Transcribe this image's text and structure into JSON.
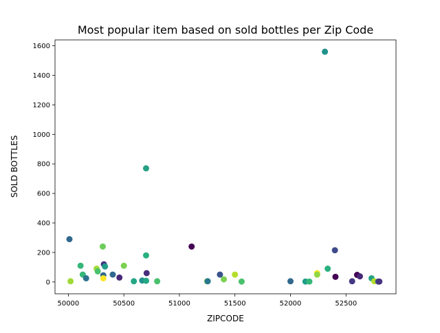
{
  "chart_data": {
    "type": "scatter",
    "title": "Most popular item based on sold bottles per Zip Code",
    "xlabel": "ZIPCODE",
    "ylabel": "SOLD BOTTLES",
    "xlim": [
      49880,
      52950
    ],
    "ylim": [
      -80,
      1640
    ],
    "xticks": [
      {
        "value": 50000,
        "label": "50000"
      },
      {
        "value": 50500,
        "label": "50500"
      },
      {
        "value": 51000,
        "label": "51000"
      },
      {
        "value": 51500,
        "label": "51500"
      },
      {
        "value": 52000,
        "label": "52000"
      },
      {
        "value": 52500,
        "label": "52500"
      }
    ],
    "yticks": [
      {
        "value": 0,
        "label": "0"
      },
      {
        "value": 200,
        "label": "200"
      },
      {
        "value": 400,
        "label": "400"
      },
      {
        "value": 600,
        "label": "600"
      },
      {
        "value": 800,
        "label": "800"
      },
      {
        "value": 1000,
        "label": "1000"
      },
      {
        "value": 1200,
        "label": "1200"
      },
      {
        "value": 1400,
        "label": "1400"
      },
      {
        "value": 1600,
        "label": "1600"
      }
    ],
    "grid": false,
    "points": [
      {
        "x": 50010,
        "y": 290,
        "color": "#31688e"
      },
      {
        "x": 50020,
        "y": 5,
        "color": "#a0da39"
      },
      {
        "x": 50110,
        "y": 110,
        "color": "#35b779"
      },
      {
        "x": 50130,
        "y": 50,
        "color": "#35b779"
      },
      {
        "x": 50160,
        "y": 25,
        "color": "#2c728e"
      },
      {
        "x": 50255,
        "y": 90,
        "color": "#a0da39"
      },
      {
        "x": 50265,
        "y": 72,
        "color": "#4ac16d"
      },
      {
        "x": 50310,
        "y": 240,
        "color": "#6ccd5a"
      },
      {
        "x": 50315,
        "y": 45,
        "color": "#31688e"
      },
      {
        "x": 50315,
        "y": 25,
        "color": "#fde725"
      },
      {
        "x": 50320,
        "y": 120,
        "color": "#443983"
      },
      {
        "x": 50330,
        "y": 105,
        "color": "#1f9e89"
      },
      {
        "x": 50400,
        "y": 50,
        "color": "#31688e"
      },
      {
        "x": 50460,
        "y": 30,
        "color": "#482878"
      },
      {
        "x": 50500,
        "y": 110,
        "color": "#7ad151"
      },
      {
        "x": 50590,
        "y": 5,
        "color": "#22a884"
      },
      {
        "x": 50665,
        "y": 10,
        "color": "#21918c"
      },
      {
        "x": 50700,
        "y": 770,
        "color": "#26a185"
      },
      {
        "x": 50700,
        "y": 180,
        "color": "#2ab07f"
      },
      {
        "x": 50705,
        "y": 60,
        "color": "#472d7b"
      },
      {
        "x": 50700,
        "y": 8,
        "color": "#22a884"
      },
      {
        "x": 50800,
        "y": 5,
        "color": "#4ac16d"
      },
      {
        "x": 51110,
        "y": 240,
        "color": "#440154"
      },
      {
        "x": 51250,
        "y": 5,
        "color": "#7ad151"
      },
      {
        "x": 51255,
        "y": 5,
        "color": "#2a788e"
      },
      {
        "x": 51365,
        "y": 50,
        "color": "#3b528b"
      },
      {
        "x": 51400,
        "y": 18,
        "color": "#7ad151"
      },
      {
        "x": 51500,
        "y": 50,
        "color": "#b5de2b"
      },
      {
        "x": 51560,
        "y": 3,
        "color": "#4ac16d"
      },
      {
        "x": 52000,
        "y": 5,
        "color": "#31688e"
      },
      {
        "x": 52135,
        "y": 3,
        "color": "#1f9e89"
      },
      {
        "x": 52170,
        "y": 3,
        "color": "#35b779"
      },
      {
        "x": 52240,
        "y": 60,
        "color": "#fde725"
      },
      {
        "x": 52240,
        "y": 50,
        "color": "#90d743"
      },
      {
        "x": 52310,
        "y": 1560,
        "color": "#21918c"
      },
      {
        "x": 52335,
        "y": 90,
        "color": "#2ab07f"
      },
      {
        "x": 52400,
        "y": 215,
        "color": "#3e4a89"
      },
      {
        "x": 52405,
        "y": 35,
        "color": "#440154"
      },
      {
        "x": 52555,
        "y": 5,
        "color": "#443983"
      },
      {
        "x": 52600,
        "y": 48,
        "color": "#440154"
      },
      {
        "x": 52625,
        "y": 38,
        "color": "#482878"
      },
      {
        "x": 52730,
        "y": 25,
        "color": "#26a185"
      },
      {
        "x": 52755,
        "y": 5,
        "color": "#b5de2b"
      },
      {
        "x": 52790,
        "y": 3,
        "color": "#3b528b"
      },
      {
        "x": 52800,
        "y": 3,
        "color": "#46327e"
      }
    ]
  }
}
